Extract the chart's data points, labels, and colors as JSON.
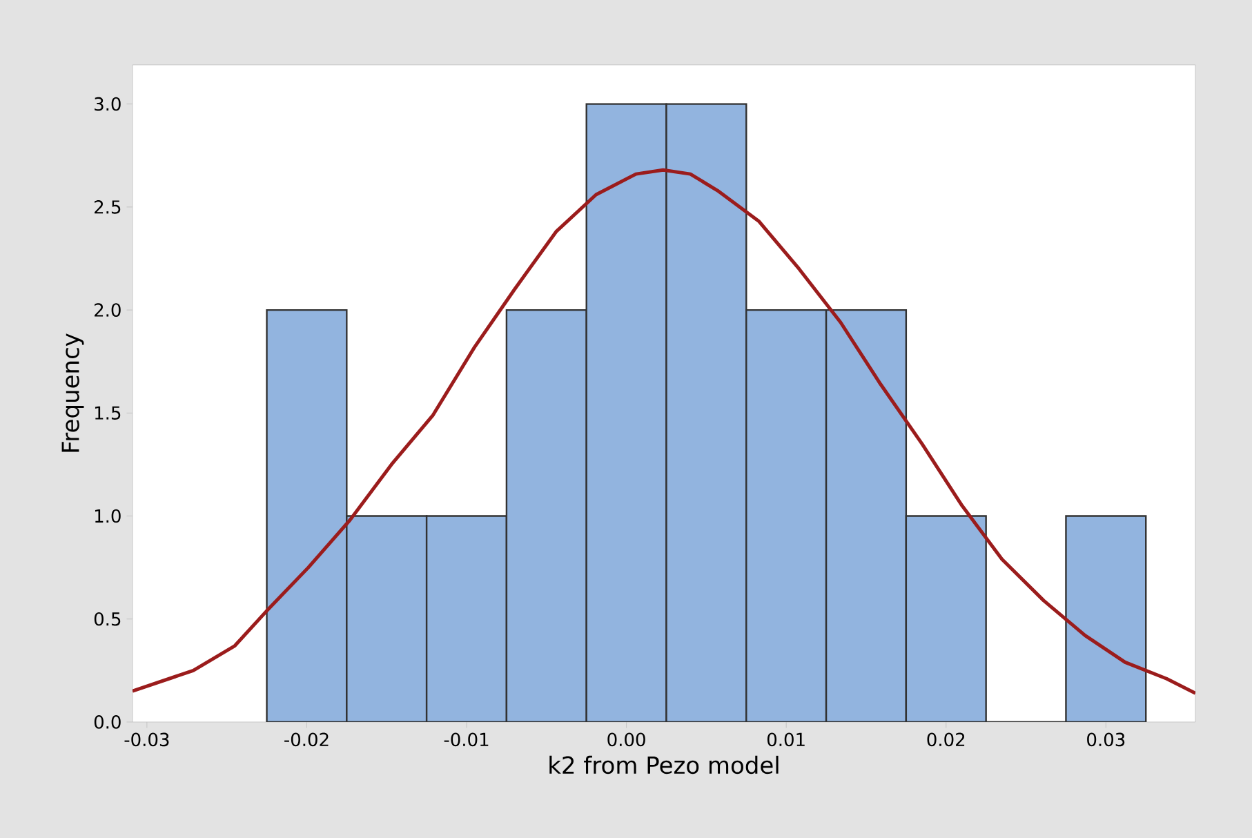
{
  "chart_data": {
    "type": "histogram",
    "xlabel": "k2 from Pezo model",
    "ylabel": "Frequency",
    "bins": [
      -0.0225,
      -0.0175,
      -0.0125,
      -0.0075,
      -0.0025,
      0.0025,
      0.0075,
      0.0125,
      0.0175,
      0.0225,
      0.0275,
      0.0325
    ],
    "values": [
      2,
      1,
      1,
      2,
      3,
      3,
      2,
      2,
      1,
      0,
      1
    ],
    "color": "#92b4df",
    "series": [
      {
        "type": "line",
        "color": "#9b1c1c",
        "x": [
          -0.0309,
          -0.0271,
          -0.0245,
          -0.0225,
          -0.0199,
          -0.0173,
          -0.0147,
          -0.0121,
          -0.0095,
          -0.007,
          -0.0044,
          -0.0019,
          0.0006,
          0.0023,
          0.004,
          0.0057,
          0.0083,
          0.0108,
          0.0134,
          0.0159,
          0.0185,
          0.021,
          0.0235,
          0.0261,
          0.0287,
          0.0312,
          0.0338,
          0.0356
        ],
        "values": [
          0.15,
          0.25,
          0.37,
          0.54,
          0.75,
          0.98,
          1.25,
          1.49,
          1.82,
          2.1,
          2.38,
          2.56,
          2.66,
          2.68,
          2.66,
          2.58,
          2.43,
          2.2,
          1.94,
          1.64,
          1.35,
          1.05,
          0.79,
          0.59,
          0.42,
          0.29,
          0.21,
          0.14
        ]
      }
    ],
    "xlim": [
      -0.0309,
      0.0356
    ],
    "ylim": [
      0,
      3.19
    ],
    "xticks": [
      -0.03,
      -0.02,
      -0.01,
      {
        "value": 0,
        "label": "0.00"
      },
      0.01,
      0.02,
      0.03
    ],
    "yticks": [
      {
        "value": 0,
        "label": "0.0"
      },
      0.5,
      {
        "value": 1,
        "label": "1.0"
      },
      1.5,
      {
        "value": 2,
        "label": "2.0"
      },
      2.5,
      {
        "value": 3,
        "label": "3.0"
      }
    ]
  }
}
